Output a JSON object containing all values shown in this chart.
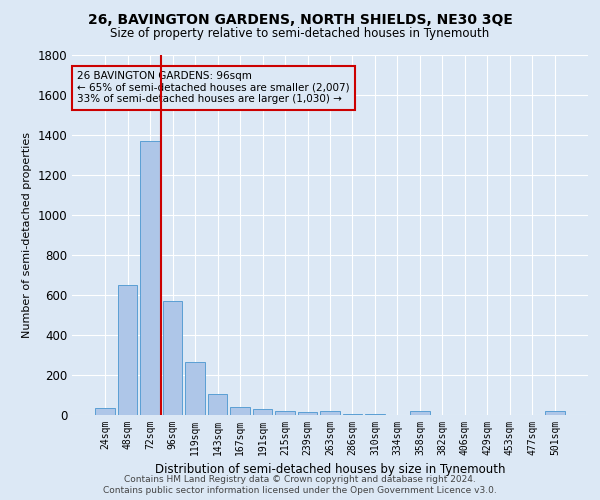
{
  "title": "26, BAVINGTON GARDENS, NORTH SHIELDS, NE30 3QE",
  "subtitle": "Size of property relative to semi-detached houses in Tynemouth",
  "xlabel": "Distribution of semi-detached houses by size in Tynemouth",
  "ylabel": "Number of semi-detached properties",
  "footnote1": "Contains HM Land Registry data © Crown copyright and database right 2024.",
  "footnote2": "Contains public sector information licensed under the Open Government Licence v3.0.",
  "annotation_title": "26 BAVINGTON GARDENS: 96sqm",
  "annotation_line1": "← 65% of semi-detached houses are smaller (2,007)",
  "annotation_line2": "33% of semi-detached houses are larger (1,030) →",
  "bar_labels": [
    "24sqm",
    "48sqm",
    "72sqm",
    "96sqm",
    "119sqm",
    "143sqm",
    "167sqm",
    "191sqm",
    "215sqm",
    "239sqm",
    "263sqm",
    "286sqm",
    "310sqm",
    "334sqm",
    "358sqm",
    "382sqm",
    "406sqm",
    "429sqm",
    "453sqm",
    "477sqm",
    "501sqm"
  ],
  "bar_values": [
    35,
    648,
    1370,
    570,
    265,
    107,
    40,
    28,
    20,
    15,
    20,
    5,
    3,
    0,
    18,
    0,
    0,
    0,
    0,
    0,
    18
  ],
  "bar_color": "#aec6e8",
  "bar_edge_color": "#5a9fd4",
  "red_line_index": 3,
  "red_line_color": "#cc0000",
  "background_color": "#dce8f5",
  "ylim": [
    0,
    1800
  ],
  "yticks": [
    0,
    200,
    400,
    600,
    800,
    1000,
    1200,
    1400,
    1600,
    1800
  ]
}
